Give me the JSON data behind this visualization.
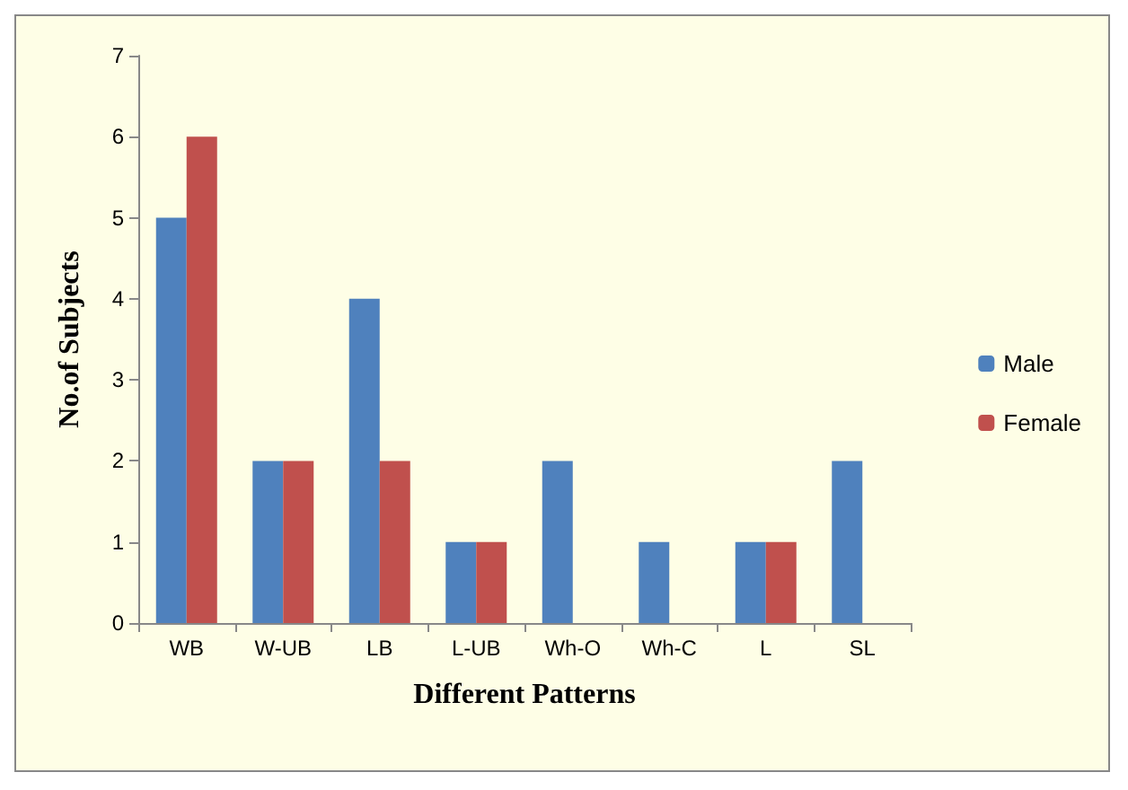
{
  "chart_data": {
    "type": "bar",
    "xlabel": "Different Patterns",
    "ylabel": "No.of Subjects",
    "categories": [
      "WB",
      "W-UB",
      "LB",
      "L-UB",
      "Wh-O",
      "Wh-C",
      "L",
      "SL"
    ],
    "series": [
      {
        "name": "Male",
        "color": "#4f81bd",
        "values": [
          5,
          2,
          4,
          1,
          2,
          1,
          1,
          2
        ]
      },
      {
        "name": "Female",
        "color": "#c0504d",
        "values": [
          6,
          2,
          2,
          1,
          0,
          0,
          1,
          0
        ]
      }
    ],
    "ylim": [
      0,
      7
    ],
    "yticks": [
      0,
      1,
      2,
      3,
      4,
      5,
      6,
      7
    ],
    "grid": false,
    "legend": "right"
  }
}
